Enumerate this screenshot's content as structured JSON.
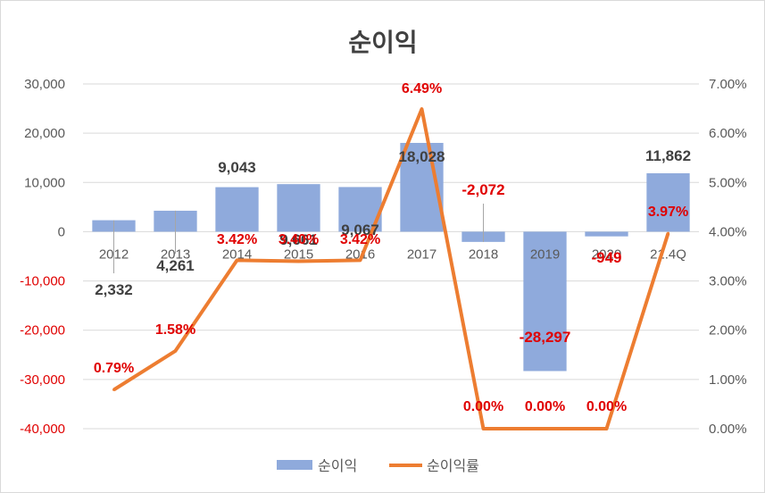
{
  "chart_data": {
    "type": "bar+line",
    "title": "순이익",
    "categories": [
      "2012",
      "2013",
      "2014",
      "2015",
      "2016",
      "2017",
      "2018",
      "2019",
      "2020",
      "21.4Q"
    ],
    "series": [
      {
        "name": "순이익",
        "type": "bar",
        "axis": "left",
        "color": "#8faadc",
        "values": [
          2332,
          4261,
          9043,
          9661,
          9067,
          18028,
          -2072,
          -28297,
          -949,
          11862
        ],
        "labels": [
          "2,332",
          "4,261",
          "9,043",
          "9,661",
          "9,067",
          "18,028",
          "-2,072",
          "-28,297",
          "-949",
          "11,862"
        ]
      },
      {
        "name": "순이익률",
        "type": "line",
        "axis": "right",
        "color": "#ed7d31",
        "values": [
          0.79,
          1.58,
          3.42,
          3.4,
          3.42,
          6.49,
          0.0,
          0.0,
          0.0,
          3.97
        ],
        "labels": [
          "0.79%",
          "1.58%",
          "3.42%",
          "3.40%",
          "3.42%",
          "6.49%",
          "0.00%",
          "0.00%",
          "0.00%",
          "3.97%"
        ]
      }
    ],
    "y_left": {
      "min": -40000,
      "max": 30000,
      "step": 10000,
      "ticks": [
        "30,000",
        "20,000",
        "10,000",
        "0",
        "-10,000",
        "-20,000",
        "-30,000",
        "-40,000"
      ]
    },
    "y_right": {
      "min": 0,
      "max": 7,
      "step": 1,
      "ticks": [
        "7.00%",
        "6.00%",
        "5.00%",
        "4.00%",
        "3.00%",
        "2.00%",
        "1.00%",
        "0.00%"
      ]
    },
    "grid": true,
    "legend": "bottom"
  }
}
